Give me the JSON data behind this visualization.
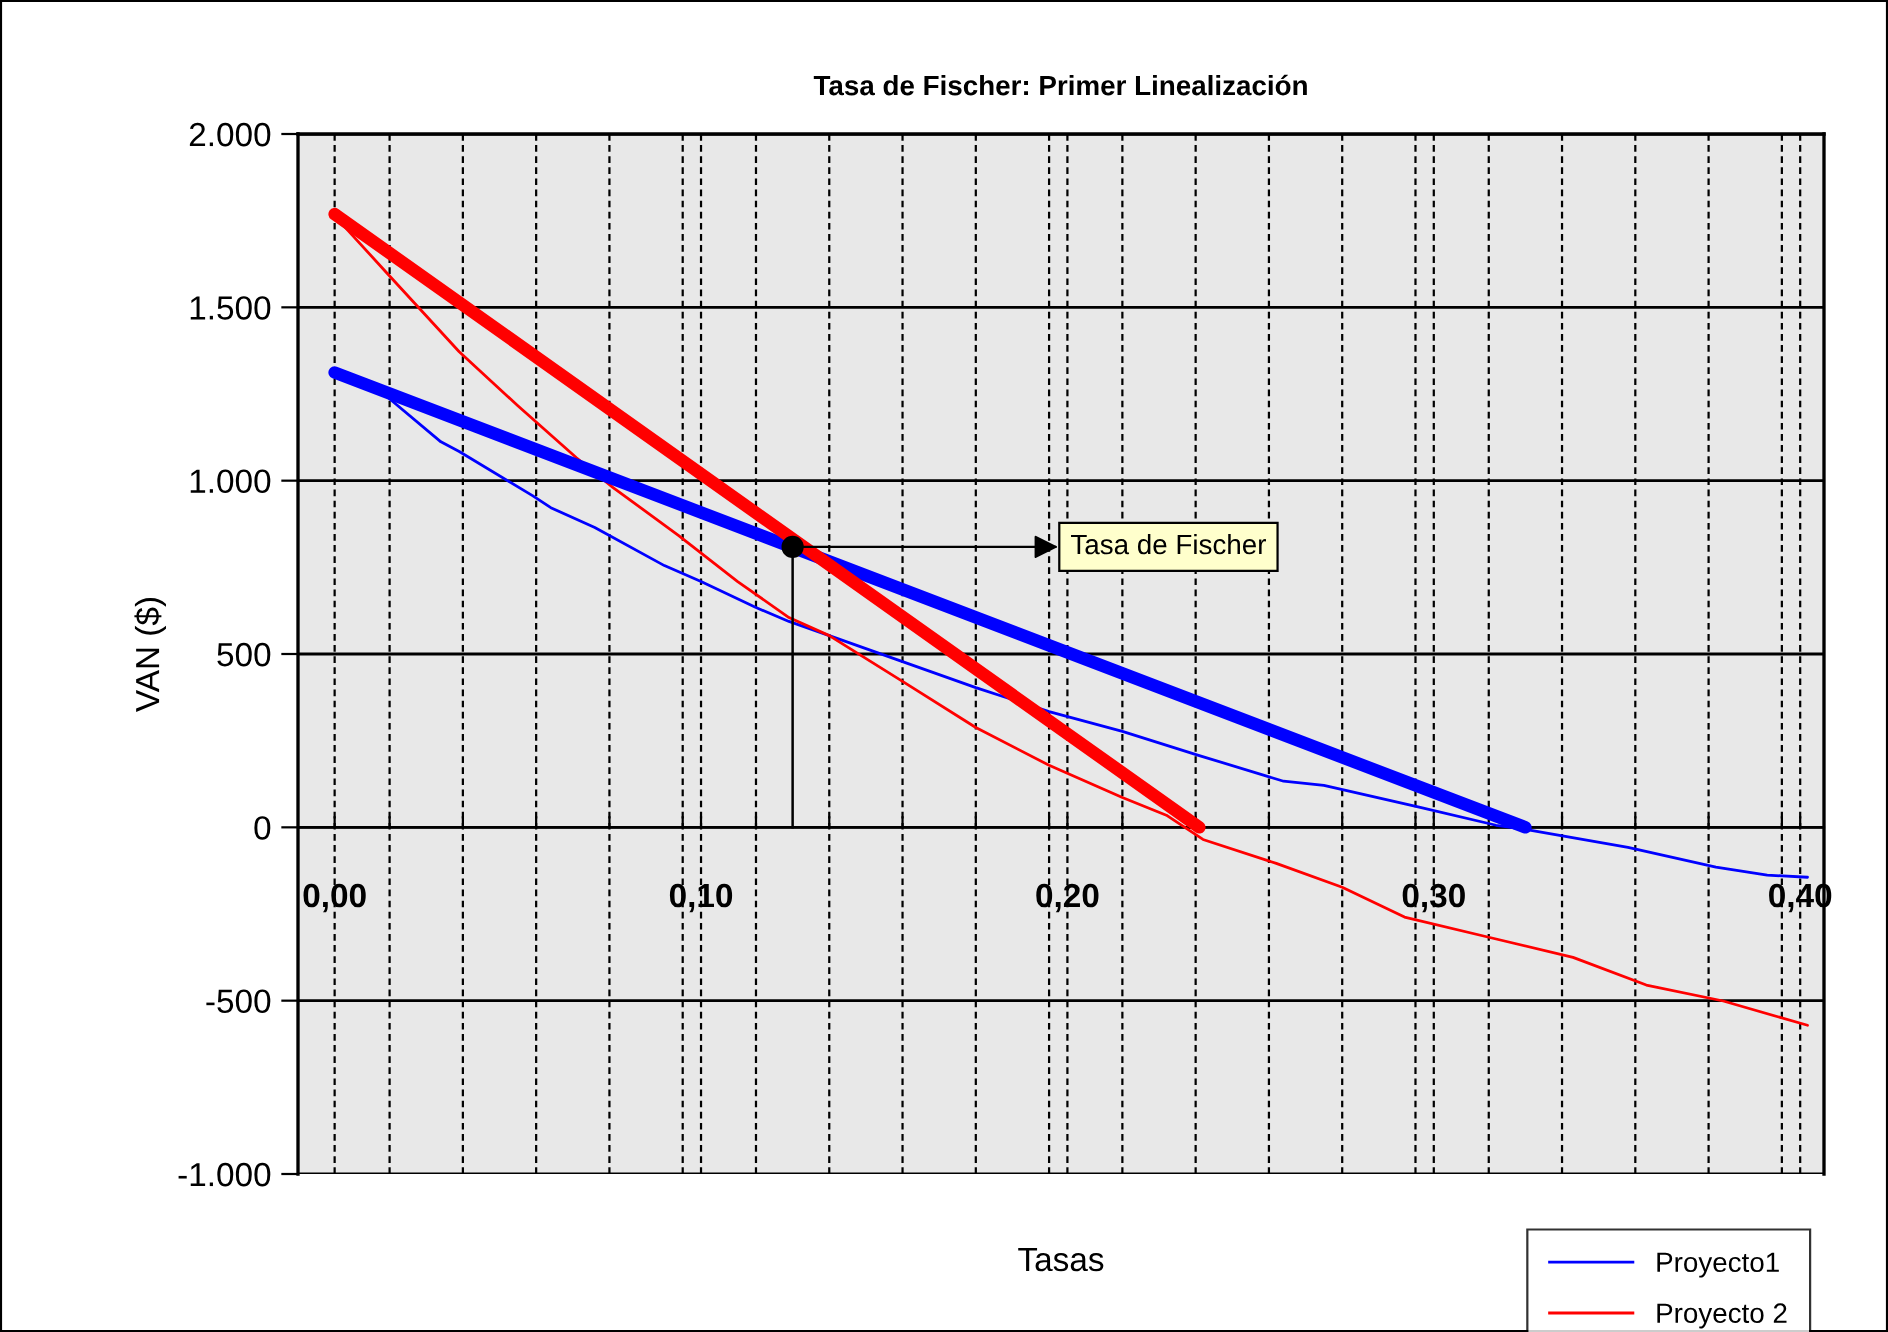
{
  "chart_data": {
    "type": "line",
    "title": "Tasa de Fischer: Primer Linealización",
    "xlabel": "Tasas",
    "ylabel": "VAN ($)",
    "series": [
      {
        "name": "Proyecto1",
        "color": "#0000ff",
        "x": [
          0.0,
          0.014,
          0.029,
          0.034,
          0.054,
          0.059,
          0.071,
          0.09,
          0.1,
          0.115,
          0.124,
          0.135,
          0.155,
          0.175,
          0.195,
          0.215,
          0.236,
          0.259,
          0.27,
          0.296,
          0.317,
          0.325,
          0.353,
          0.377,
          0.391,
          0.402
        ],
        "values": [
          1308,
          1245,
          1112,
          1084,
          957,
          922,
          865,
          755,
          709,
          634,
          594,
          553,
          478,
          403,
          334,
          277,
          207,
          133,
          121,
          58,
          6,
          -6,
          -58,
          -115,
          -138,
          -144
        ]
      },
      {
        "name": "Proyecto 2",
        "color": "#ff0000",
        "x": [
          0.0,
          0.014,
          0.034,
          0.05,
          0.066,
          0.076,
          0.094,
          0.11,
          0.124,
          0.135,
          0.155,
          0.175,
          0.195,
          0.215,
          0.227,
          0.237,
          0.257,
          0.275,
          0.292,
          0.315,
          0.338,
          0.358,
          0.379,
          0.402
        ],
        "values": [
          1764,
          1602,
          1372,
          1216,
          1066,
          980,
          841,
          709,
          605,
          553,
          421,
          288,
          179,
          86,
          35,
          -35,
          -104,
          -173,
          -259,
          -317,
          -375,
          -455,
          -501,
          -571
        ]
      },
      {
        "color": "#0000ff",
        "x": [
          0.0,
          0.325
        ],
        "values": [
          1312,
          0
        ]
      },
      {
        "color": "#ff0000",
        "x": [
          0.0,
          0.236
        ],
        "values": [
          1769,
          0
        ]
      }
    ],
    "annotations": [
      {
        "text": "Tasa de Fischer",
        "x": 0.125,
        "y": 809
      }
    ],
    "xlim": [
      -0.01,
      0.4065
    ],
    "ylim": [
      -1000,
      2000
    ],
    "xticks": [
      {
        "value": 0.0,
        "label": "0,00"
      },
      {
        "value": 0.1,
        "label": "0,10"
      },
      {
        "value": 0.2,
        "label": "0,20"
      },
      {
        "value": 0.3,
        "label": "0,30"
      },
      {
        "value": 0.4,
        "label": "0,40"
      },
      {
        "value": 0.015,
        "label": null
      },
      {
        "value": 0.035,
        "label": null
      },
      {
        "value": 0.055,
        "label": null
      },
      {
        "value": 0.075,
        "label": null
      },
      {
        "value": 0.095,
        "label": null
      },
      {
        "value": 0.115,
        "label": null
      },
      {
        "value": 0.135,
        "label": null
      },
      {
        "value": 0.155,
        "label": null
      },
      {
        "value": 0.175,
        "label": null
      },
      {
        "value": 0.195,
        "label": null
      },
      {
        "value": 0.215,
        "label": null
      },
      {
        "value": 0.235,
        "label": null
      },
      {
        "value": 0.255,
        "label": null
      },
      {
        "value": 0.275,
        "label": null
      },
      {
        "value": 0.295,
        "label": null
      },
      {
        "value": 0.315,
        "label": null
      },
      {
        "value": 0.335,
        "label": null
      },
      {
        "value": 0.355,
        "label": null
      },
      {
        "value": 0.375,
        "label": null
      },
      {
        "value": 0.395,
        "label": null
      }
    ],
    "yticks": [
      {
        "value": -1000,
        "label": "-1.000"
      },
      {
        "value": -500,
        "label": "-500"
      },
      0,
      {
        "value": 500,
        "label": "500"
      },
      {
        "value": 1000,
        "label": "1.000"
      },
      {
        "value": 1500,
        "label": "1.500"
      },
      {
        "value": 2000,
        "label": "2.000"
      }
    ],
    "grid": true,
    "legend": "bottom right",
    "marker": "none",
    "line_style": "solid"
  }
}
